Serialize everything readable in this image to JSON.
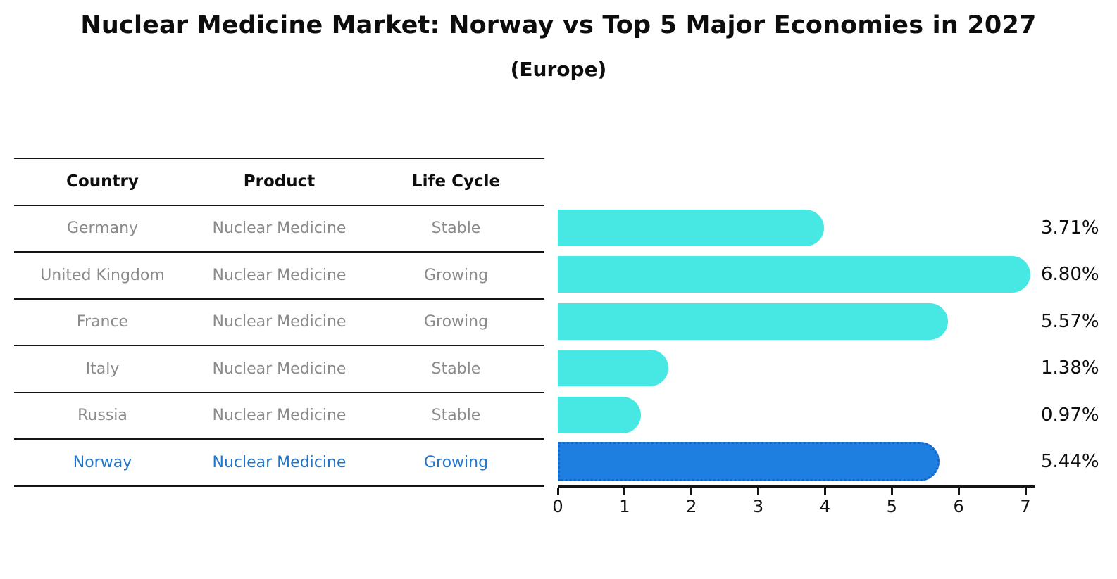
{
  "title": "Nuclear Medicine Market: Norway vs Top 5 Major Economies in 2027",
  "subtitle": "(Europe)",
  "table": {
    "headers": [
      "Country",
      "Product",
      "Life Cycle"
    ],
    "rows": [
      {
        "country": "Germany",
        "product": "Nuclear Medicine",
        "life_cycle": "Stable",
        "highlight": false
      },
      {
        "country": "United Kingdom",
        "product": "Nuclear Medicine",
        "life_cycle": "Growing",
        "highlight": false
      },
      {
        "country": "France",
        "product": "Nuclear Medicine",
        "life_cycle": "Growing",
        "highlight": false
      },
      {
        "country": "Italy",
        "product": "Nuclear Medicine",
        "life_cycle": "Stable",
        "highlight": false
      },
      {
        "country": "Russia",
        "product": "Nuclear Medicine",
        "life_cycle": "Stable",
        "highlight": false
      },
      {
        "country": "Norway",
        "product": "Nuclear Medicine",
        "life_cycle": "Growing",
        "highlight": true
      }
    ]
  },
  "chart_data": {
    "type": "bar",
    "orientation": "horizontal",
    "title": "Nuclear Medicine Market: Norway vs Top 5 Major Economies in 2027",
    "subtitle": "(Europe)",
    "categories": [
      "Germany",
      "United Kingdom",
      "France",
      "Italy",
      "Russia",
      "Norway"
    ],
    "values": [
      3.71,
      6.8,
      5.57,
      1.38,
      0.97,
      5.44
    ],
    "value_labels": [
      "3.71%",
      "6.80%",
      "5.57%",
      "1.38%",
      "0.97%",
      "5.44%"
    ],
    "x_ticks": [
      0,
      1,
      2,
      3,
      4,
      5,
      6,
      7
    ],
    "xlim": [
      0,
      7
    ],
    "xlabel": "",
    "ylabel": "",
    "grid": false,
    "legend": false,
    "highlight_index": 5,
    "bar_color": "#47e8e3",
    "highlight_bar_color": "#1f7fe1",
    "highlight_border_color": "#1661c4",
    "highlight_text_color": "#2277cc"
  }
}
